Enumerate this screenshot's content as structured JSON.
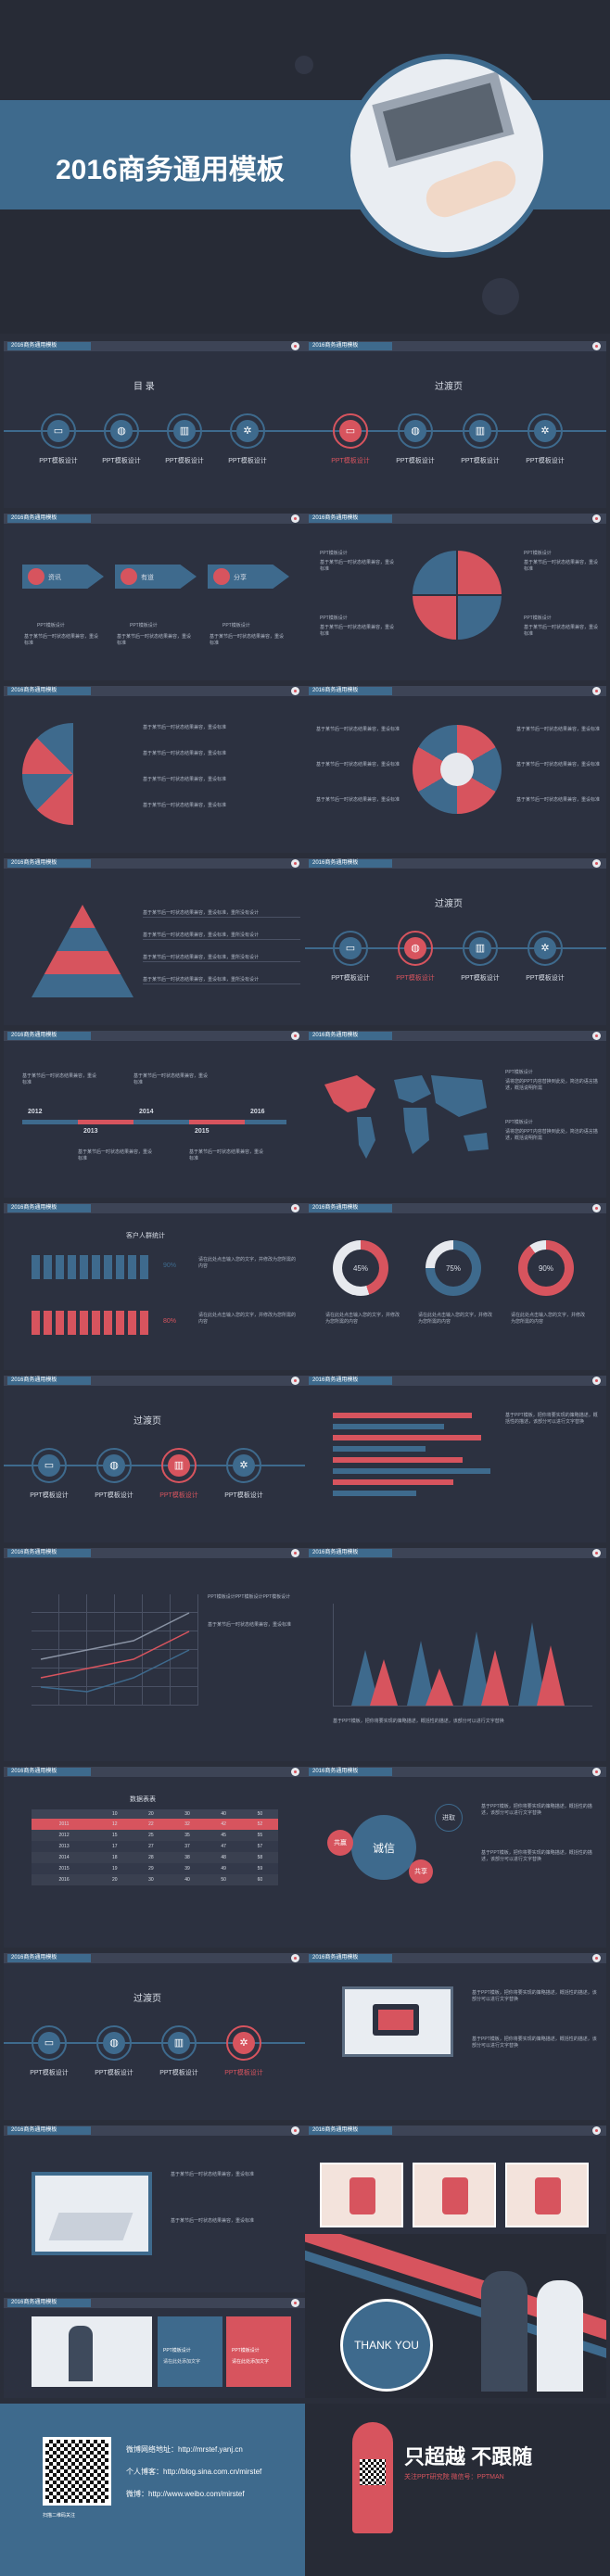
{
  "cover": {
    "title": "2016商务通用模板"
  },
  "header_tag": "2016商务通用模板",
  "slide_toc": {
    "title": "目  录",
    "items": [
      "PPT模板设计",
      "PPT模板设计",
      "PPT模板设计",
      "PPT模板设计"
    ]
  },
  "slide_transition": {
    "title": "过渡页",
    "items": [
      "PPT模板设计",
      "PPT模板设计",
      "PPT模板设计",
      "PPT模板设计"
    ]
  },
  "slide_arrows": {
    "labels": [
      "资讯",
      "有道",
      "分享"
    ],
    "caption": "PPT模板设计",
    "body": "基于某节后一时状态结果兼容，重设标准"
  },
  "slide_quad": {
    "caption": "PPT模板设计",
    "body": "基于某节后一时状态结果兼容，重设标准"
  },
  "slide_pyramid": {
    "rows": [
      "基于某节后一时状态结果兼容，重设标准，重所没有设计",
      "基于某节后一时状态结果兼容，重设标准，重所没有设计",
      "基于某节后一时状态结果兼容，重设标准，重所没有设计",
      "基于某节后一时状态结果兼容，重设标准，重所没有设计"
    ]
  },
  "slide_timeline": {
    "years": [
      "2012",
      "2013",
      "2014",
      "2015",
      "2016"
    ],
    "body": "基于某节后一时状态结果兼容，重设标准"
  },
  "slide_map": {
    "caption": "PPT模板设计",
    "body": "请将您的PPT内容替换到此处，简洁的语言描述，概括说明所需"
  },
  "slide_people": {
    "title": "客户人群统计",
    "pct1": "90%",
    "pct2": "80%",
    "body": "请在此处点击输入您的文字，并修改为您所需的内容"
  },
  "slide_donuts": {
    "values": [
      "45%",
      "75%",
      "90%"
    ],
    "body": "请在此处点击输入您的文字，并修改为您所需的内容"
  },
  "slide_hbar": {
    "body": "基于PPT模板，把你将要实现的策略描述，概括性的描述，该部分可以进行文字替换"
  },
  "slide_line": {
    "body": "PPT模板设计PPT模板设计PPT模板设计"
  },
  "slide_table": {
    "title": "数据表表",
    "headers": [
      "",
      "10",
      "20",
      "30",
      "40",
      "50"
    ],
    "rows": [
      [
        "2011",
        "12",
        "22",
        "32",
        "42",
        "52"
      ],
      [
        "2012",
        "15",
        "25",
        "35",
        "45",
        "55"
      ],
      [
        "2013",
        "17",
        "27",
        "37",
        "47",
        "57"
      ],
      [
        "2014",
        "18",
        "28",
        "38",
        "48",
        "58"
      ],
      [
        "2015",
        "19",
        "29",
        "39",
        "49",
        "59"
      ],
      [
        "2016",
        "20",
        "30",
        "40",
        "50",
        "60"
      ]
    ]
  },
  "slide_bubbles": {
    "center": "诚信",
    "left": "共赢",
    "right": "共享",
    "right2": "进取"
  },
  "slide_photos": {
    "body": "基于某节后一时状态结果兼容，重设标准"
  },
  "slide_cards": {
    "left_title": "PPT模板设计",
    "right_title": "PPT模板设计",
    "body": "请在此处添加文字"
  },
  "thank_you": "THANK YOU",
  "footer": {
    "lines": [
      "微博网络地址：http://mrstef.yanj.cn",
      "个人博客：http://blog.sina.com.cn/mirstef",
      "微博：http://www.weibo.com/mirstef"
    ],
    "qr_caption": "扫描二维码关注",
    "slogan": "只超越 不跟随",
    "slogan_sub": "关注PPT研究院 微信号：PPTMAN"
  },
  "colors": {
    "blue": "#3e6a8d",
    "red": "#d7545e",
    "bg": "#2c3140"
  }
}
